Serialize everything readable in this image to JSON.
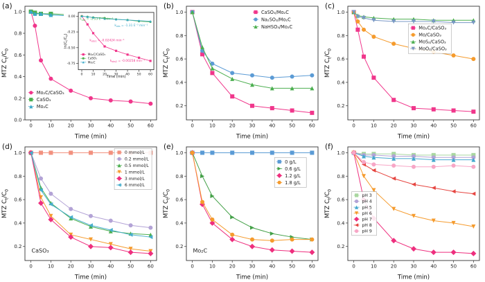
{
  "figure": {
    "background": "#ffffff"
  },
  "chart_data": [
    {
      "panel": "(a)",
      "type": "line",
      "xlabel": "Time (min)",
      "ylabel": "MTZ C_t/C_0",
      "xlim": [
        -3,
        63
      ],
      "ylim": [
        0,
        1.05
      ],
      "ydec": 1,
      "xticks": [
        0,
        10,
        20,
        30,
        40,
        50,
        60
      ],
      "yticks": [
        0,
        0.2,
        0.4,
        0.6,
        0.8,
        1
      ],
      "x": [
        0,
        2,
        5,
        10,
        20,
        30,
        40,
        50,
        60
      ],
      "series": [
        {
          "name": "Mo₂C/CaSO₃",
          "color": "#F0368B",
          "marker": "circle",
          "y": [
            1,
            0.87,
            0.55,
            0.38,
            0.27,
            0.2,
            0.18,
            0.17,
            0.15
          ]
        },
        {
          "name": "CaSO₃",
          "color": "#4CAF50",
          "marker": "square",
          "y": [
            1,
            0.99,
            0.98,
            0.98,
            0.97,
            0.97,
            0.97,
            0.97,
            0.96
          ]
        },
        {
          "name": "Mo₂C",
          "color": "#3AA8C9",
          "marker": "triangle-up",
          "y": [
            1,
            0.98,
            0.98,
            0.97,
            0.96,
            0.96,
            0.96,
            0.95,
            0.95
          ]
        }
      ],
      "legend": {
        "pos": [
          0.02,
          0.73
        ],
        "row": 10,
        "size": 6.6,
        "box": false
      },
      "inset": {
        "bg": true,
        "fx": 0.295,
        "fy": 0.03,
        "fw": 0.7,
        "fh": 0.62,
        "margins": {
          "l": 21,
          "r": 3,
          "t": 4,
          "b": 15
        },
        "fonts": {
          "tick": 4.6,
          "label": 5.2,
          "legend": 4.2,
          "msize": 1.6,
          "lw": 0.8
        },
        "ylx": 4,
        "xlabel": "Time (min)",
        "ylabel": "ln(C_t/C_0)",
        "xlim": [
          -3,
          63
        ],
        "ylim": [
          -0.85,
          0.06
        ],
        "ydec": 2,
        "xticks": [
          0,
          10,
          20,
          30,
          40,
          50,
          60
        ],
        "yticks": [
          0,
          -0.25,
          -0.5,
          -0.75
        ],
        "x": [
          0,
          5,
          10,
          20,
          30,
          40,
          50,
          60
        ],
        "series": [
          {
            "name": "Mo₂C/CaSO₃",
            "color": "#F0368B",
            "marker": "square",
            "y": [
              0,
              -0.13,
              -0.27,
              -0.48,
              -0.55,
              -0.61,
              -0.66,
              -0.71
            ]
          },
          {
            "name": "CaSO₃",
            "color": "#4CAF50",
            "marker": "circle",
            "y": [
              0,
              -0.01,
              -0.02,
              -0.03,
              -0.05,
              -0.06,
              -0.08,
              -0.09
            ]
          },
          {
            "name": "Mo₂C",
            "color": "#3AA8C9",
            "marker": "triangle-up",
            "y": [
              0,
              -0.01,
              -0.02,
              -0.04,
              -0.05,
              -0.06,
              -0.07,
              -0.08
            ]
          }
        ],
        "annotations": [
          {
            "text": "k_{obs} = -1.53 E⁻³ min⁻¹",
            "fx": 0.02,
            "fy": 0.13,
            "color": "#4CAF50",
            "size": 4.4
          },
          {
            "text": "k_{obs} = -1.31 E⁻³ min⁻¹",
            "fx": 0.48,
            "fy": 0.24,
            "color": "#3AA8C9",
            "size": 4.4
          },
          {
            "text": "k_{obs1} = -0.02424 min⁻¹",
            "fx": 0.15,
            "fy": 0.5,
            "color": "#F0368B",
            "size": 4.4
          },
          {
            "text": "k_{obs2} = -0.00258 min⁻¹",
            "fx": 0.42,
            "fy": 0.86,
            "color": "#F0368B",
            "size": 4.4
          }
        ],
        "legend": {
          "pos": [
            0.02,
            0.7
          ],
          "row": 5.6,
          "size": 4.2,
          "box": false
        }
      }
    },
    {
      "panel": "(b)",
      "type": "line",
      "xlabel": "Time (min)",
      "ylabel": "MTZ C_t/C_0",
      "xlim": [
        -3,
        63
      ],
      "ylim": [
        0.08,
        1.05
      ],
      "ydec": 1,
      "xticks": [
        0,
        10,
        20,
        30,
        40,
        50,
        60
      ],
      "yticks": [
        0.2,
        0.4,
        0.6,
        0.8,
        1
      ],
      "x": [
        0,
        5,
        10,
        20,
        30,
        40,
        50,
        60
      ],
      "series": [
        {
          "name": "CaSO₃/Mo₂C",
          "color": "#F0368B",
          "marker": "square",
          "y": [
            1,
            0.64,
            0.48,
            0.28,
            0.2,
            0.18,
            0.16,
            0.14
          ]
        },
        {
          "name": "Na₂SO₃/Mo₂C",
          "color": "#5B9BD5",
          "marker": "circle",
          "y": [
            1,
            0.67,
            0.56,
            0.48,
            0.46,
            0.44,
            0.45,
            0.46
          ]
        },
        {
          "name": "NaHSO₃/Mo₂C",
          "color": "#4CAF50",
          "marker": "triangle-up",
          "y": [
            1,
            0.7,
            0.52,
            0.43,
            0.38,
            0.35,
            0.35,
            0.35
          ]
        }
      ],
      "legend": {
        "pos": [
          0.5,
          0.02
        ],
        "row": 10.5,
        "size": 6.6,
        "box": false
      }
    },
    {
      "panel": "(c)",
      "type": "line",
      "xlabel": "Time (min)",
      "ylabel": "MTZ C_t/C_0",
      "xlim": [
        -3,
        63
      ],
      "ylim": [
        0.08,
        1.05
      ],
      "ydec": 1,
      "xticks": [
        0,
        10,
        20,
        30,
        40,
        50,
        60
      ],
      "yticks": [
        0.2,
        0.4,
        0.6,
        0.8,
        1
      ],
      "x": [
        0,
        2,
        5,
        10,
        20,
        30,
        40,
        50,
        60
      ],
      "series": [
        {
          "name": "Mo₂C/CaSO₃",
          "color": "#F0368B",
          "marker": "square",
          "y": [
            1,
            0.85,
            0.62,
            0.44,
            0.25,
            0.18,
            0.17,
            0.16,
            0.15
          ]
        },
        {
          "name": "Mo/CaSO₃",
          "color": "#F59B2D",
          "marker": "circle",
          "y": [
            1,
            0.92,
            0.85,
            0.79,
            0.73,
            0.69,
            0.66,
            0.63,
            0.6
          ]
        },
        {
          "name": "MoS₂/CaSO₃",
          "color": "#4CAF50",
          "marker": "triangle-up",
          "y": [
            1,
            0.97,
            0.96,
            0.95,
            0.94,
            0.94,
            0.93,
            0.93,
            0.93
          ]
        },
        {
          "name": "MoO₂/CaSO₃",
          "color": "#7A98C6",
          "marker": "triangle-down",
          "y": [
            1,
            0.96,
            0.95,
            0.93,
            0.92,
            0.92,
            0.92,
            0.91,
            0.91
          ]
        }
      ],
      "legend": {
        "pos": [
          0.47,
          0.16
        ],
        "row": 10,
        "size": 6.6,
        "box": true,
        "w": 62
      }
    },
    {
      "panel": "(d)",
      "type": "line",
      "xlabel": "Time (min)",
      "ylabel": "MTZ C_t/C_0",
      "xlim": [
        -3,
        63
      ],
      "ylim": [
        0.08,
        1.05
      ],
      "ydec": 1,
      "xticks": [
        0,
        10,
        20,
        30,
        40,
        50,
        60
      ],
      "yticks": [
        0.2,
        0.4,
        0.6,
        0.8,
        1
      ],
      "x": [
        0,
        5,
        10,
        20,
        30,
        40,
        50,
        60
      ],
      "series": [
        {
          "name": "0 mmol/L",
          "color": "#F2917F",
          "marker": "square",
          "y": [
            1,
            1,
            1,
            1,
            1,
            1,
            1,
            1
          ]
        },
        {
          "name": "0.2 mmol/L",
          "color": "#B3A3D6",
          "marker": "circle",
          "y": [
            1,
            0.78,
            0.65,
            0.52,
            0.46,
            0.42,
            0.38,
            0.36
          ]
        },
        {
          "name": "0.5 mmol/L",
          "color": "#4CAF50",
          "marker": "triangle-up",
          "y": [
            1,
            0.7,
            0.57,
            0.44,
            0.37,
            0.33,
            0.31,
            0.3
          ]
        },
        {
          "name": "1 mmol/L",
          "color": "#F59B2D",
          "marker": "triangle-down",
          "y": [
            1,
            0.62,
            0.46,
            0.3,
            0.26,
            0.22,
            0.18,
            0.16
          ]
        },
        {
          "name": "3 mmol/L",
          "color": "#EE2F7E",
          "marker": "diamond",
          "y": [
            1,
            0.57,
            0.43,
            0.28,
            0.2,
            0.19,
            0.15,
            0.14
          ]
        },
        {
          "name": "6 mmol/L",
          "color": "#47AECC",
          "marker": "triangle-left",
          "y": [
            1,
            0.68,
            0.56,
            0.45,
            0.38,
            0.34,
            0.3,
            0.28
          ]
        }
      ],
      "annotations": [
        {
          "text": "CaSO₃",
          "fx": 0.05,
          "fy": 0.93,
          "color": "#222222",
          "size": 8
        }
      ],
      "legend": {
        "pos": [
          0.69,
          0.02
        ],
        "row": 9.4,
        "size": 6.2,
        "box": true,
        "w": 54
      }
    },
    {
      "panel": "(e)",
      "type": "line",
      "xlabel": "Time (min)",
      "ylabel": "MTZ C_t/C_0",
      "xlim": [
        -3,
        63
      ],
      "ylim": [
        0.08,
        1.05
      ],
      "ydec": 1,
      "xticks": [
        0,
        10,
        20,
        30,
        40,
        50,
        60
      ],
      "yticks": [
        0.2,
        0.4,
        0.6,
        0.8,
        1
      ],
      "x": [
        0,
        5,
        10,
        20,
        30,
        40,
        50,
        60
      ],
      "series": [
        {
          "name": "0 g/L",
          "color": "#5B9BD5",
          "marker": "square",
          "y": [
            1,
            1,
            1,
            1,
            1,
            1,
            1,
            1
          ]
        },
        {
          "name": "0.6 g/L",
          "color": "#43A047",
          "marker": "triangle-right",
          "y": [
            1,
            0.8,
            0.63,
            0.45,
            0.36,
            0.31,
            0.28,
            0.26
          ]
        },
        {
          "name": "1.2 g/L",
          "color": "#EE2F7E",
          "marker": "diamond",
          "y": [
            1,
            0.56,
            0.4,
            0.26,
            0.2,
            0.17,
            0.16,
            0.15
          ]
        },
        {
          "name": "1.8 g/L",
          "color": "#F59B2D",
          "marker": "circle",
          "y": [
            1,
            0.58,
            0.43,
            0.3,
            0.26,
            0.25,
            0.26,
            0.26
          ]
        }
      ],
      "annotations": [
        {
          "text": "Mo₂C",
          "fx": 0.05,
          "fy": 0.93,
          "color": "#222222",
          "size": 8
        }
      ],
      "legend": {
        "pos": [
          0.68,
          0.1
        ],
        "row": 10,
        "size": 6.6,
        "box": true,
        "w": 46
      }
    },
    {
      "panel": "(f)",
      "type": "line",
      "xlabel": "Time (min)",
      "ylabel": "MTZ C_t/C_0",
      "xlim": [
        -3,
        63
      ],
      "ylim": [
        0.08,
        1.05
      ],
      "ydec": 1,
      "xticks": [
        0,
        10,
        20,
        30,
        40,
        50,
        60
      ],
      "yticks": [
        0.2,
        0.4,
        0.6,
        0.8,
        1
      ],
      "x": [
        0,
        5,
        10,
        20,
        30,
        40,
        50,
        60
      ],
      "series": [
        {
          "name": "pH 3",
          "color": "#A9D7A0",
          "marker": "square",
          "y": [
            1,
            0.99,
            0.99,
            0.99,
            0.98,
            0.98,
            0.98,
            0.98
          ]
        },
        {
          "name": "pH 4",
          "color": "#B3A3D6",
          "marker": "circle",
          "y": [
            1,
            0.98,
            0.98,
            0.97,
            0.97,
            0.96,
            0.96,
            0.96
          ]
        },
        {
          "name": "pH 5",
          "color": "#44A8CE",
          "marker": "triangle-up",
          "y": [
            1,
            0.97,
            0.96,
            0.95,
            0.95,
            0.94,
            0.94,
            0.94
          ]
        },
        {
          "name": "pH 6",
          "color": "#F59B2D",
          "marker": "triangle-down",
          "y": [
            1,
            0.8,
            0.68,
            0.52,
            0.46,
            0.42,
            0.4,
            0.37
          ]
        },
        {
          "name": "pH 7",
          "color": "#EE2F7E",
          "marker": "diamond",
          "y": [
            1,
            0.6,
            0.44,
            0.25,
            0.18,
            0.15,
            0.15,
            0.14
          ]
        },
        {
          "name": "pH 8",
          "color": "#E64540",
          "marker": "triangle-left",
          "y": [
            1,
            0.9,
            0.85,
            0.78,
            0.73,
            0.7,
            0.67,
            0.65
          ]
        },
        {
          "name": "pH 9",
          "color": "#F7A6C6",
          "marker": "circle",
          "y": [
            1,
            0.92,
            0.9,
            0.89,
            0.88,
            0.88,
            0.89,
            0.88
          ]
        }
      ],
      "legend": {
        "pos": [
          0.04,
          0.4
        ],
        "row": 8.6,
        "size": 6.2,
        "box": true,
        "w": 36
      }
    }
  ]
}
